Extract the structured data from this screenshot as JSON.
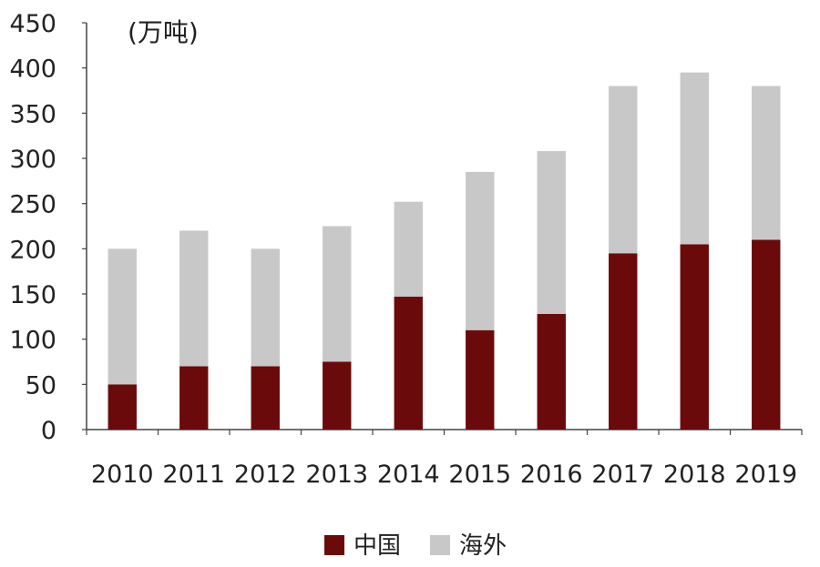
{
  "chart_data": {
    "type": "bar",
    "stacked": true,
    "unit_label": "(万吨)",
    "categories": [
      "2010",
      "2011",
      "2012",
      "2013",
      "2014",
      "2015",
      "2016",
      "2017",
      "2018",
      "2019"
    ],
    "series": [
      {
        "name": "中国",
        "color": "#6b0a0a",
        "values": [
          50,
          70,
          70,
          75,
          147,
          110,
          128,
          195,
          205,
          210
        ]
      },
      {
        "name": "海外",
        "color": "#c8c8c8",
        "values": [
          150,
          150,
          130,
          150,
          105,
          175,
          180,
          185,
          190,
          170
        ]
      }
    ],
    "ylim": [
      0,
      450
    ],
    "yticks": [
      0,
      50,
      100,
      150,
      200,
      250,
      300,
      350,
      400,
      450
    ],
    "grid": false,
    "legend_position": "bottom"
  }
}
